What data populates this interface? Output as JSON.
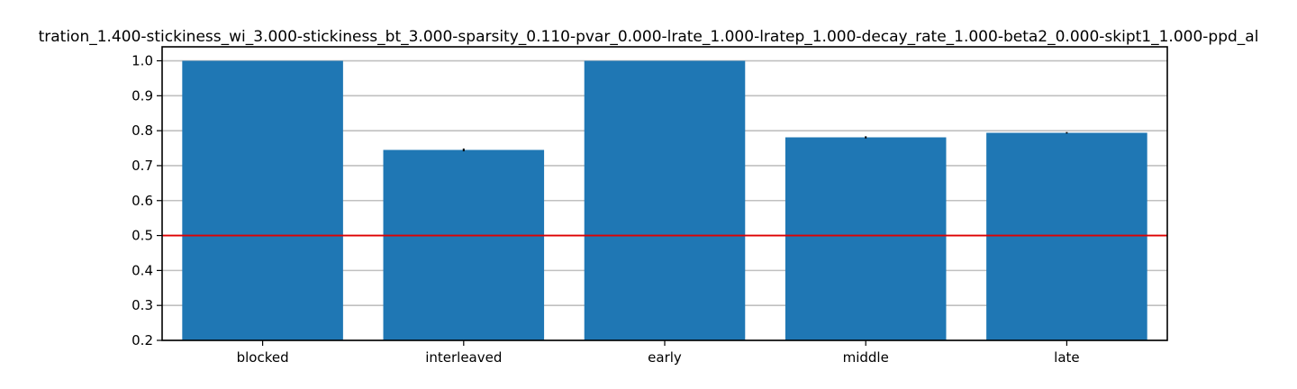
{
  "chart_data": {
    "type": "bar",
    "title": "tration_1.400-stickiness_wi_3.000-stickiness_bt_3.000-sparsity_0.110-pvar_0.000-lrate_1.000-lratep_1.000-decay_rate_1.000-beta2_0.000-skipt1_1.000-ppd_al",
    "categories": [
      "blocked",
      "interleaved",
      "early",
      "middle",
      "late"
    ],
    "values": [
      1.0,
      0.745,
      1.0,
      0.781,
      0.794
    ],
    "errors": [
      0.0,
      0.004,
      0.0,
      0.003,
      0.002
    ],
    "ylim": [
      0.2,
      1.04
    ],
    "yticks": [
      0.2,
      0.3,
      0.4,
      0.5,
      0.6,
      0.7,
      0.8,
      0.9,
      1.0
    ],
    "ytick_labels": [
      "0.2",
      "0.3",
      "0.4",
      "0.5",
      "0.6",
      "0.7",
      "0.8",
      "0.9",
      "1.0"
    ],
    "reference_line": 0.5,
    "grid": "horizontal",
    "colors": {
      "bar": "#1f77b4",
      "reference": "#e00000",
      "grid": "#c0c0c0",
      "error": "#000000"
    }
  }
}
